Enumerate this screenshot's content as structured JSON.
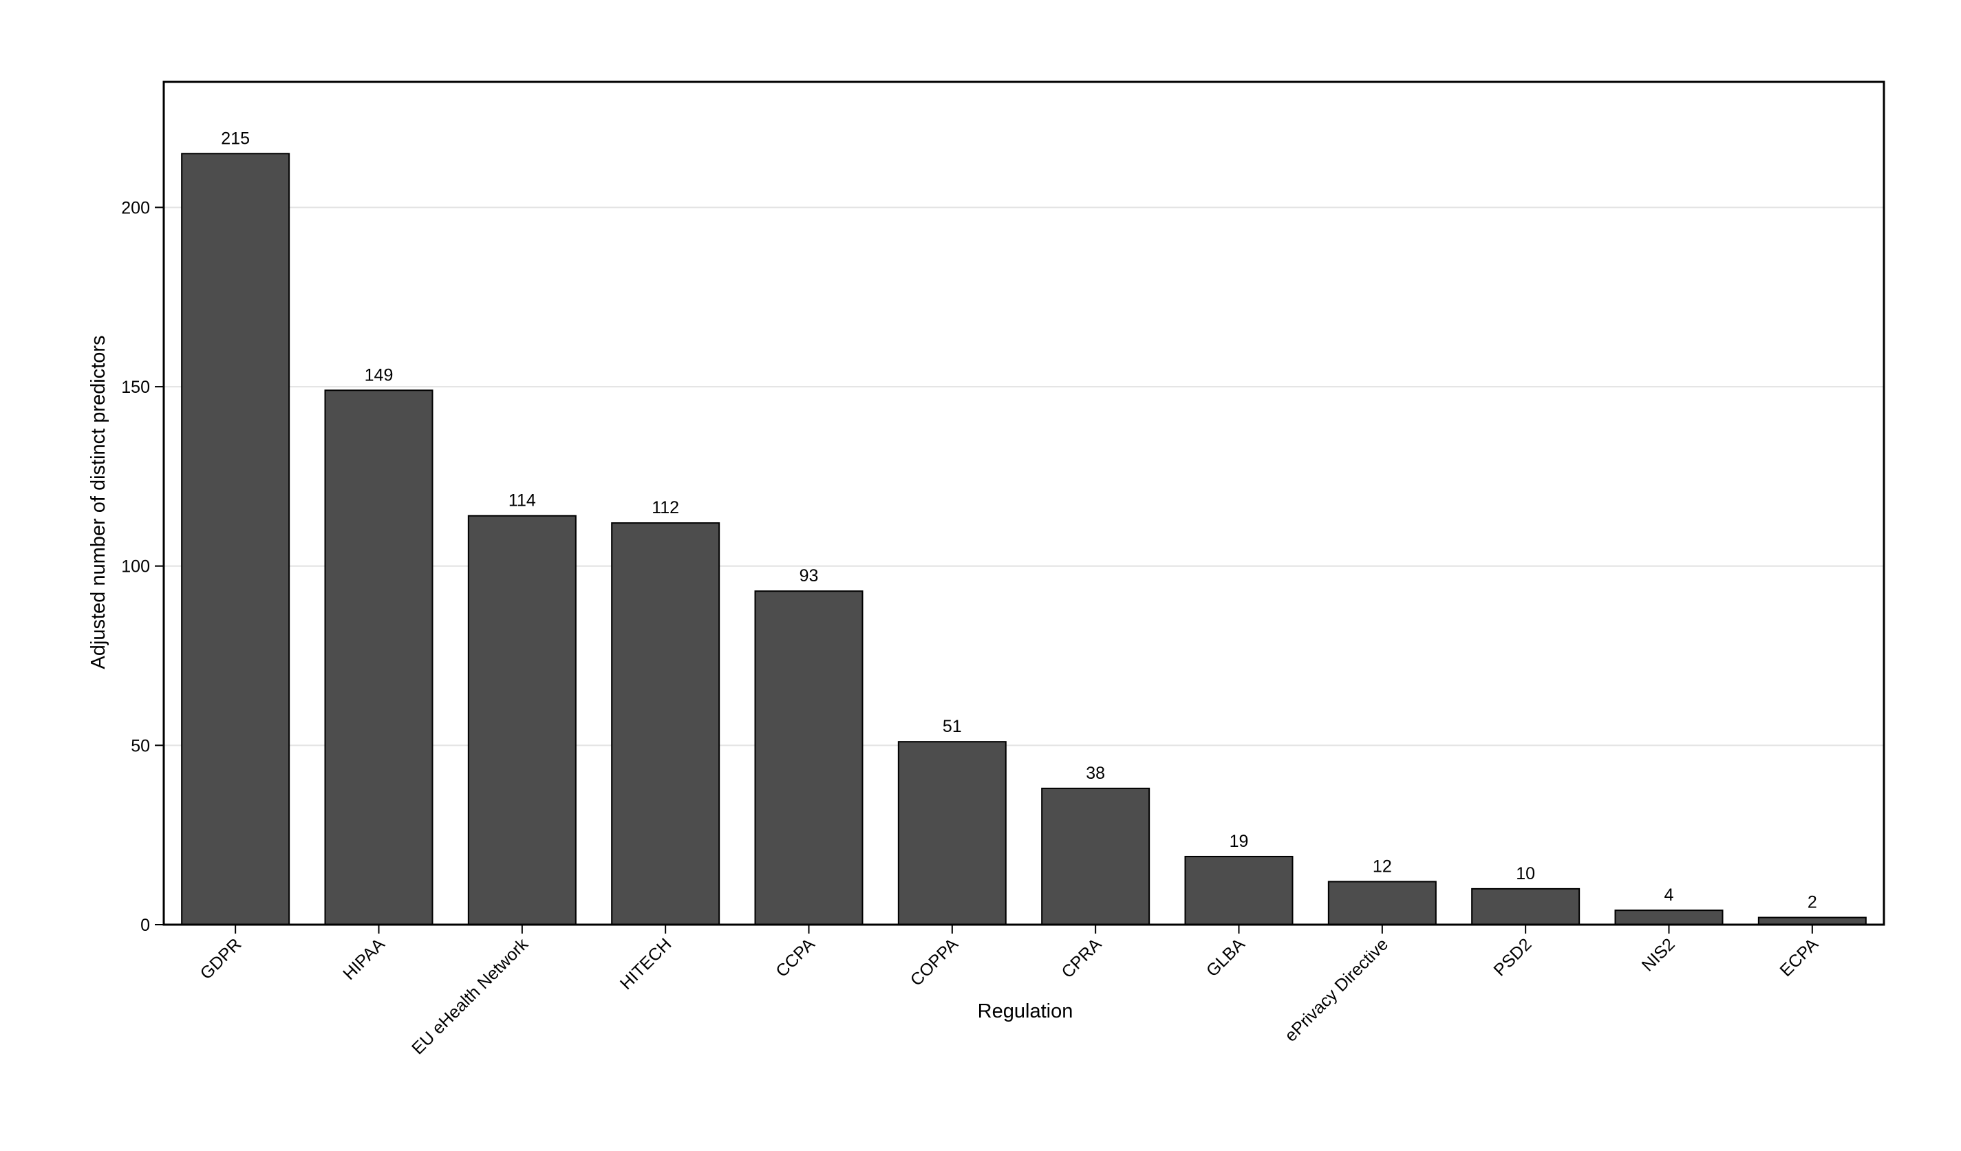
{
  "chart_data": {
    "type": "bar",
    "title": "",
    "xlabel": "Regulation",
    "ylabel": "Adjusted number of distinct predictors",
    "categories": [
      "GDPR",
      "HIPAA",
      "EU eHealth Network",
      "HITECH",
      "CCPA",
      "COPPA",
      "CPRA",
      "GLBA",
      "ePrivacy Directive",
      "PSD2",
      "NIS2",
      "ECPA"
    ],
    "values": [
      215,
      149,
      114,
      112,
      93,
      51,
      38,
      19,
      12,
      10,
      4,
      2
    ],
    "ylim": [
      0,
      235
    ],
    "yticks": [
      0,
      50,
      100,
      150,
      200
    ],
    "grid": "horizontal",
    "legend": "none",
    "bar_color": "#4d4d4d",
    "bar_edge_color": "#000000",
    "grid_color": "#e3e3e3"
  }
}
